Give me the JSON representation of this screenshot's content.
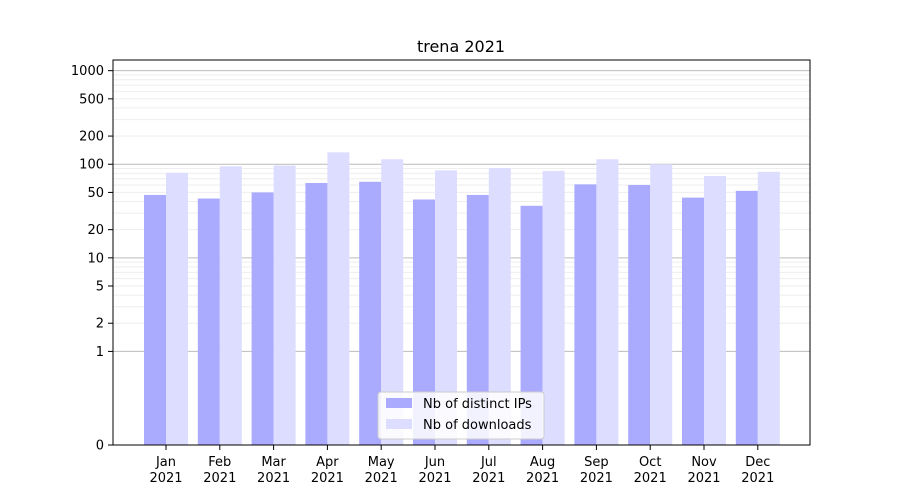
{
  "chart_data": {
    "type": "bar",
    "title": "trena 2021",
    "xlabel": "",
    "ylabel": "",
    "yscale": "symlog",
    "ylim": [
      0,
      1300
    ],
    "y_ticks": [
      0,
      1,
      2,
      5,
      10,
      20,
      50,
      100,
      200,
      500,
      1000
    ],
    "grid": true,
    "legend_position": "bottom-center",
    "categories": [
      [
        "Jan",
        "2021"
      ],
      [
        "Feb",
        "2021"
      ],
      [
        "Mar",
        "2021"
      ],
      [
        "Apr",
        "2021"
      ],
      [
        "May",
        "2021"
      ],
      [
        "Jun",
        "2021"
      ],
      [
        "Jul",
        "2021"
      ],
      [
        "Aug",
        "2021"
      ],
      [
        "Sep",
        "2021"
      ],
      [
        "Oct",
        "2021"
      ],
      [
        "Nov",
        "2021"
      ],
      [
        "Dec",
        "2021"
      ]
    ],
    "series": [
      {
        "name": "Nb of distinct IPs",
        "color": "#aaaaff",
        "values": [
          47,
          43,
          50,
          63,
          65,
          42,
          47,
          36,
          61,
          60,
          44,
          52
        ]
      },
      {
        "name": "Nb of downloads",
        "color": "#ddddff",
        "values": [
          81,
          95,
          97,
          134,
          113,
          86,
          91,
          85,
          113,
          100,
          75,
          83
        ]
      }
    ]
  }
}
